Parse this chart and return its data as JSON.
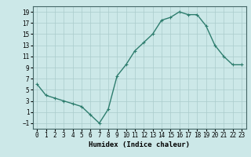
{
  "x": [
    0,
    1,
    2,
    3,
    4,
    5,
    6,
    7,
    8,
    9,
    10,
    11,
    12,
    13,
    14,
    15,
    16,
    17,
    18,
    19,
    20,
    21,
    22,
    23
  ],
  "y": [
    6,
    4,
    3.5,
    3,
    2.5,
    2,
    0.5,
    -1,
    1.5,
    7.5,
    9.5,
    12,
    13.5,
    15,
    17.5,
    18,
    19,
    18.5,
    18.5,
    16.5,
    13,
    11,
    9.5,
    9.5
  ],
  "line_color": "#2e7d6e",
  "marker": "+",
  "marker_color": "#2e7d6e",
  "bg_color": "#cce8e8",
  "grid_color": "#aacccc",
  "xlabel": "Humidex (Indice chaleur)",
  "xlim": [
    -0.5,
    23.5
  ],
  "ylim": [
    -2,
    20
  ],
  "yticks": [
    -1,
    1,
    3,
    5,
    7,
    9,
    11,
    13,
    15,
    17,
    19
  ],
  "xticks": [
    0,
    1,
    2,
    3,
    4,
    5,
    6,
    7,
    8,
    9,
    10,
    11,
    12,
    13,
    14,
    15,
    16,
    17,
    18,
    19,
    20,
    21,
    22,
    23
  ],
  "tick_label_fontsize": 5.5,
  "xlabel_fontsize": 6.5,
  "line_width": 1.0,
  "marker_size": 3.5
}
